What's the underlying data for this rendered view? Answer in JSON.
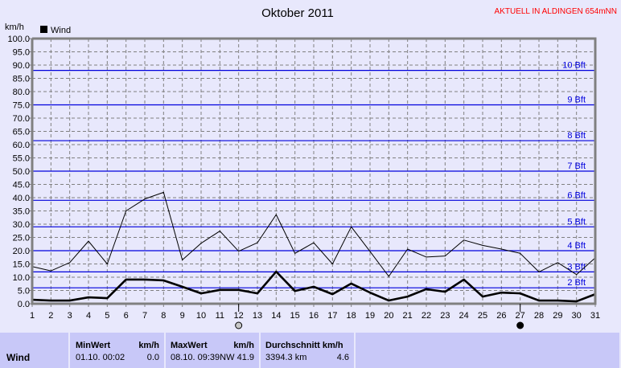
{
  "header": {
    "title": "Oktober 2011",
    "station": "AKTUELL IN ALDINGEN 654mNN",
    "station_color": "#ff0000"
  },
  "chart_data": {
    "type": "line",
    "title": "Oktober 2011",
    "ylabel": "km/h",
    "ylim": [
      0,
      100
    ],
    "yticks": [
      "0.0",
      "5.0",
      "10.0",
      "15.0",
      "20.0",
      "25.0",
      "30.0",
      "35.0",
      "40.0",
      "45.0",
      "50.0",
      "55.0",
      "60.0",
      "65.0",
      "70.0",
      "75.0",
      "80.0",
      "85.0",
      "90.0",
      "95.0",
      "100.0"
    ],
    "x": [
      1,
      2,
      3,
      4,
      5,
      6,
      7,
      8,
      9,
      10,
      11,
      12,
      13,
      14,
      15,
      16,
      17,
      18,
      19,
      20,
      21,
      22,
      23,
      24,
      25,
      26,
      27,
      28,
      29,
      30,
      31
    ],
    "grid": true,
    "legend": {
      "position": "top-left",
      "entries": [
        {
          "label": "Wind",
          "color": "#000000"
        }
      ]
    },
    "series": [
      {
        "name": "Wind",
        "style": "thick",
        "values": [
          1.5,
          1.2,
          1.2,
          2.4,
          2.1,
          9.1,
          9.1,
          8.8,
          6.4,
          3.9,
          5.2,
          5.2,
          3.9,
          12.1,
          4.8,
          6.4,
          3.6,
          7.6,
          4.2,
          1.2,
          2.7,
          5.5,
          4.5,
          9.1,
          2.7,
          4.2,
          3.9,
          1.2,
          1.2,
          0.9,
          3.6
        ]
      },
      {
        "style": "thin",
        "values": [
          14,
          12.4,
          15.5,
          23.6,
          15,
          35,
          39.5,
          42,
          16.5,
          22.8,
          27.4,
          19.8,
          23,
          33.6,
          19,
          23,
          15,
          29,
          19.7,
          10.3,
          20.6,
          17.6,
          18,
          24,
          22,
          20.6,
          19,
          12,
          15.5,
          11,
          17.3
        ]
      }
    ],
    "beaufort": [
      {
        "label": "2 Bft",
        "value": 6
      },
      {
        "label": "3 Bft",
        "value": 12
      },
      {
        "label": "4 Bft",
        "value": 20
      },
      {
        "label": "5 Bft",
        "value": 29
      },
      {
        "label": "6 Bft",
        "value": 39
      },
      {
        "label": "7 Bft",
        "value": 50
      },
      {
        "label": "8 Bft",
        "value": 61.5
      },
      {
        "label": "9 Bft",
        "value": 75
      },
      {
        "label": "10 Bft",
        "value": 88
      }
    ],
    "beaufort_color": "#0000dd",
    "moon_phases": [
      {
        "day": 12,
        "phase": "full-moon"
      },
      {
        "day": 27,
        "phase": "new-moon"
      }
    ]
  },
  "table": {
    "row_label": "Wind",
    "min": {
      "header": "MinWert",
      "unit": "km/h",
      "time": "01.10.  00:02",
      "value": "0.0"
    },
    "max": {
      "header": "MaxWert",
      "unit": "km/h",
      "time": "08.10.  09:39NW",
      "value": "41.9"
    },
    "avg": {
      "header": "Durchschnitt km/h",
      "distance": "3394.3 km",
      "value": "4.6"
    }
  }
}
